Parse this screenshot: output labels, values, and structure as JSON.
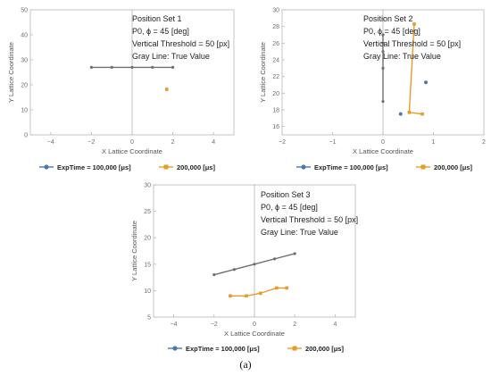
{
  "colors": {
    "true_value": "#6f6f6f",
    "series_100k": "#4a78b5",
    "series_200k": "#e79b2a",
    "frame": "#b8b8b8",
    "axis": "#9a9a9a",
    "text": "#222222",
    "tick_text": "#6e6e6e"
  },
  "legend": {
    "exp_label": "ExpTime = 100,000 [μs]",
    "second_label": "200,000 [μs]"
  },
  "caption": "(a)",
  "chart_data": [
    {
      "type": "scatter",
      "title_lines": [
        "Position Set 1",
        "P0, ϕ = 45 [deg]",
        "Vertical Threshold = 50 [px]",
        "Gray Line: True Value"
      ],
      "xlabel": "X Lattice Coordinate",
      "ylabel": "Y Lattice Coordinate",
      "xlim": [
        -5,
        5
      ],
      "ylim": [
        0,
        50
      ],
      "xticks": [
        -4,
        -2,
        0,
        2,
        4
      ],
      "yticks": [
        0,
        10,
        20,
        30,
        40,
        50
      ],
      "grid": false,
      "series": [
        {
          "role": "true",
          "x": [
            -2,
            -1,
            0,
            1,
            2
          ],
          "y": [
            27,
            27,
            27,
            27,
            27
          ]
        },
        {
          "name": "ExpTime = 100,000 [μs]",
          "x": [],
          "y": []
        },
        {
          "name": "200,000 [μs]",
          "x": [
            1.7
          ],
          "y": [
            18.2
          ]
        }
      ]
    },
    {
      "type": "scatter",
      "title_lines": [
        "Position Set 2",
        "P0, ϕ = 45 [deg]",
        "Vertical Threshold = 50 [px]",
        "Gray Line: True Value"
      ],
      "xlabel": "X Lattice Coordinate",
      "ylabel": "Y Lattice Coordinate",
      "xlim": [
        -2,
        2
      ],
      "ylim": [
        15,
        30
      ],
      "xticks": [
        -2,
        -1,
        0,
        1,
        2
      ],
      "yticks": [
        16,
        18,
        20,
        22,
        24,
        26,
        28,
        30
      ],
      "grid": false,
      "series": [
        {
          "role": "true",
          "x": [
            0,
            0,
            0,
            0,
            0
          ],
          "y": [
            19,
            23,
            25,
            26,
            27
          ]
        },
        {
          "name": "ExpTime = 100,000 [μs]",
          "x": [
            0.35,
            0.85
          ],
          "y": [
            17.5,
            21.3
          ]
        },
        {
          "name": "200,000 [μs]",
          "x": [
            0.62,
            0.52,
            0.78
          ],
          "y": [
            28.3,
            17.7,
            17.5
          ]
        }
      ]
    },
    {
      "type": "scatter",
      "title_lines": [
        "Position Set 3",
        "P0, ϕ = 45 [deg]",
        "Vertical Threshold = 50 [px]",
        "Gray Line: True Value"
      ],
      "xlabel": "X Lattice Coordinate",
      "ylabel": "Y Lattice Coordinate",
      "xlim": [
        -5,
        5
      ],
      "ylim": [
        5,
        30
      ],
      "xticks": [
        -4,
        -2,
        0,
        2,
        4
      ],
      "yticks": [
        5,
        10,
        15,
        20,
        25,
        30
      ],
      "grid": false,
      "series": [
        {
          "role": "true",
          "x": [
            -2,
            -1,
            0,
            1,
            2
          ],
          "y": [
            13,
            14,
            15,
            16,
            17
          ]
        },
        {
          "name": "ExpTime = 100,000 [μs]",
          "x": [],
          "y": []
        },
        {
          "name": "200,000 [μs]",
          "x": [
            -1.2,
            -0.4,
            0.3,
            1.1,
            1.6
          ],
          "y": [
            9.0,
            9.0,
            9.5,
            10.5,
            10.5
          ]
        }
      ]
    }
  ]
}
